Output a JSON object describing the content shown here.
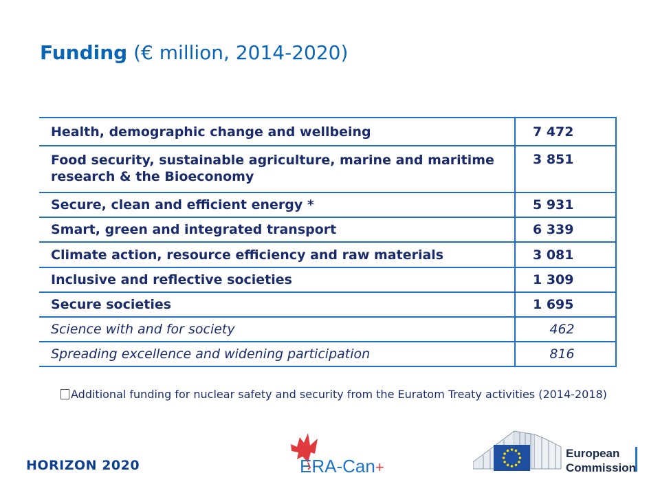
{
  "title": {
    "bold": "Funding",
    "rest": "(€ million, 2014-2020)"
  },
  "rows": [
    {
      "label": "Health, demographic change and wellbeing",
      "value": "7 472",
      "style": "bold"
    },
    {
      "label": "Food security, sustainable agriculture, marine and maritime research & the Bioeconomy",
      "value": "3 851",
      "style": "bold"
    },
    {
      "label": "Secure, clean and efficient energy *",
      "value": "5 931",
      "style": "bold"
    },
    {
      "label": "Smart, green and integrated transport",
      "value": "6 339",
      "style": "bold"
    },
    {
      "label": "Climate action, resource efficiency and raw materials",
      "value": "3 081",
      "style": "bold"
    },
    {
      "label": "Inclusive and reflective societies",
      "value": "1 309",
      "style": "bold"
    },
    {
      "label": "Secure societies",
      "value": "1 695",
      "style": "bold"
    },
    {
      "label": "Science with and for society",
      "value": "462",
      "style": "italic"
    },
    {
      "label": "Spreading excellence and widening participation",
      "value": "816",
      "style": "italic"
    }
  ],
  "footnote": "Additional funding for nuclear safety and security from the Euratom Treaty activities (2014-2018)",
  "footer": {
    "program": "HORIZON 2020",
    "era_can": "ERA-Can",
    "era_can_plus": "+",
    "ec_line1": "European",
    "ec_line2": "Commission"
  },
  "colors": {
    "title": "#0a64b4",
    "table_border": "#1f6fc0",
    "text": "#1a2b6b",
    "eu_blue": "#1e4ea0",
    "eu_gold": "#ffdd00",
    "maple_red": "#e03a3e"
  }
}
